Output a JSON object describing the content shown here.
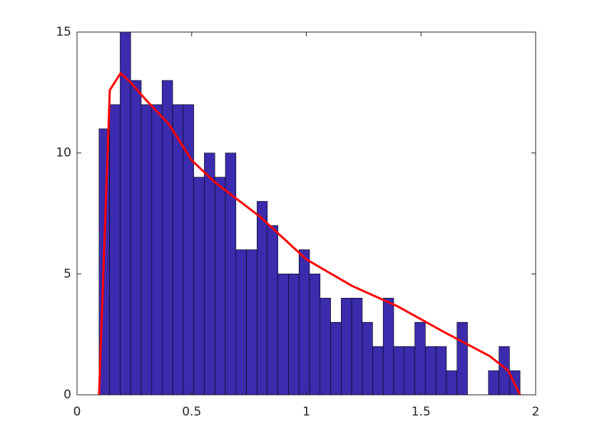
{
  "chart_data": {
    "type": "histogram",
    "bins": [
      0.096,
      0.142,
      0.188,
      0.234,
      0.28,
      0.326,
      0.371,
      0.417,
      0.463,
      0.509,
      0.555,
      0.601,
      0.647,
      0.693,
      0.739,
      0.785,
      0.83,
      0.876,
      0.922,
      0.968,
      1.014,
      1.06,
      1.106,
      1.152,
      1.198,
      1.244,
      1.289,
      1.335,
      1.381,
      1.427,
      1.473,
      1.519,
      1.565,
      1.611,
      1.657,
      1.703,
      1.748,
      1.794,
      1.84,
      1.886,
      1.932
    ],
    "values": [
      11,
      12,
      15,
      13,
      12,
      12,
      13,
      12,
      12,
      9,
      10,
      9,
      10,
      6,
      6,
      8,
      7,
      5,
      5,
      6,
      5,
      4,
      3,
      4,
      4,
      3,
      2,
      4,
      2,
      2,
      3,
      2,
      2,
      1,
      3,
      0,
      0,
      1,
      2,
      1
    ],
    "color": "#3b2bad",
    "overlay": {
      "type": "line",
      "color": "#ff0000",
      "x": [
        0.096,
        0.143,
        0.19,
        0.236,
        0.3,
        0.4,
        0.5,
        0.6,
        0.8,
        1.0,
        1.2,
        1.4,
        1.6,
        1.8,
        1.88,
        1.932
      ],
      "values": [
        0,
        12.6,
        13.3,
        12.9,
        12.2,
        11.2,
        9.7,
        8.8,
        7.35,
        5.6,
        4.5,
        3.65,
        2.6,
        1.6,
        1.0,
        0
      ]
    },
    "xlim": [
      0,
      2
    ],
    "xticks": [
      0,
      0.5,
      1,
      1.5,
      2
    ],
    "ylim": [
      0,
      15
    ],
    "yticks": [
      0,
      5,
      10,
      15
    ]
  }
}
